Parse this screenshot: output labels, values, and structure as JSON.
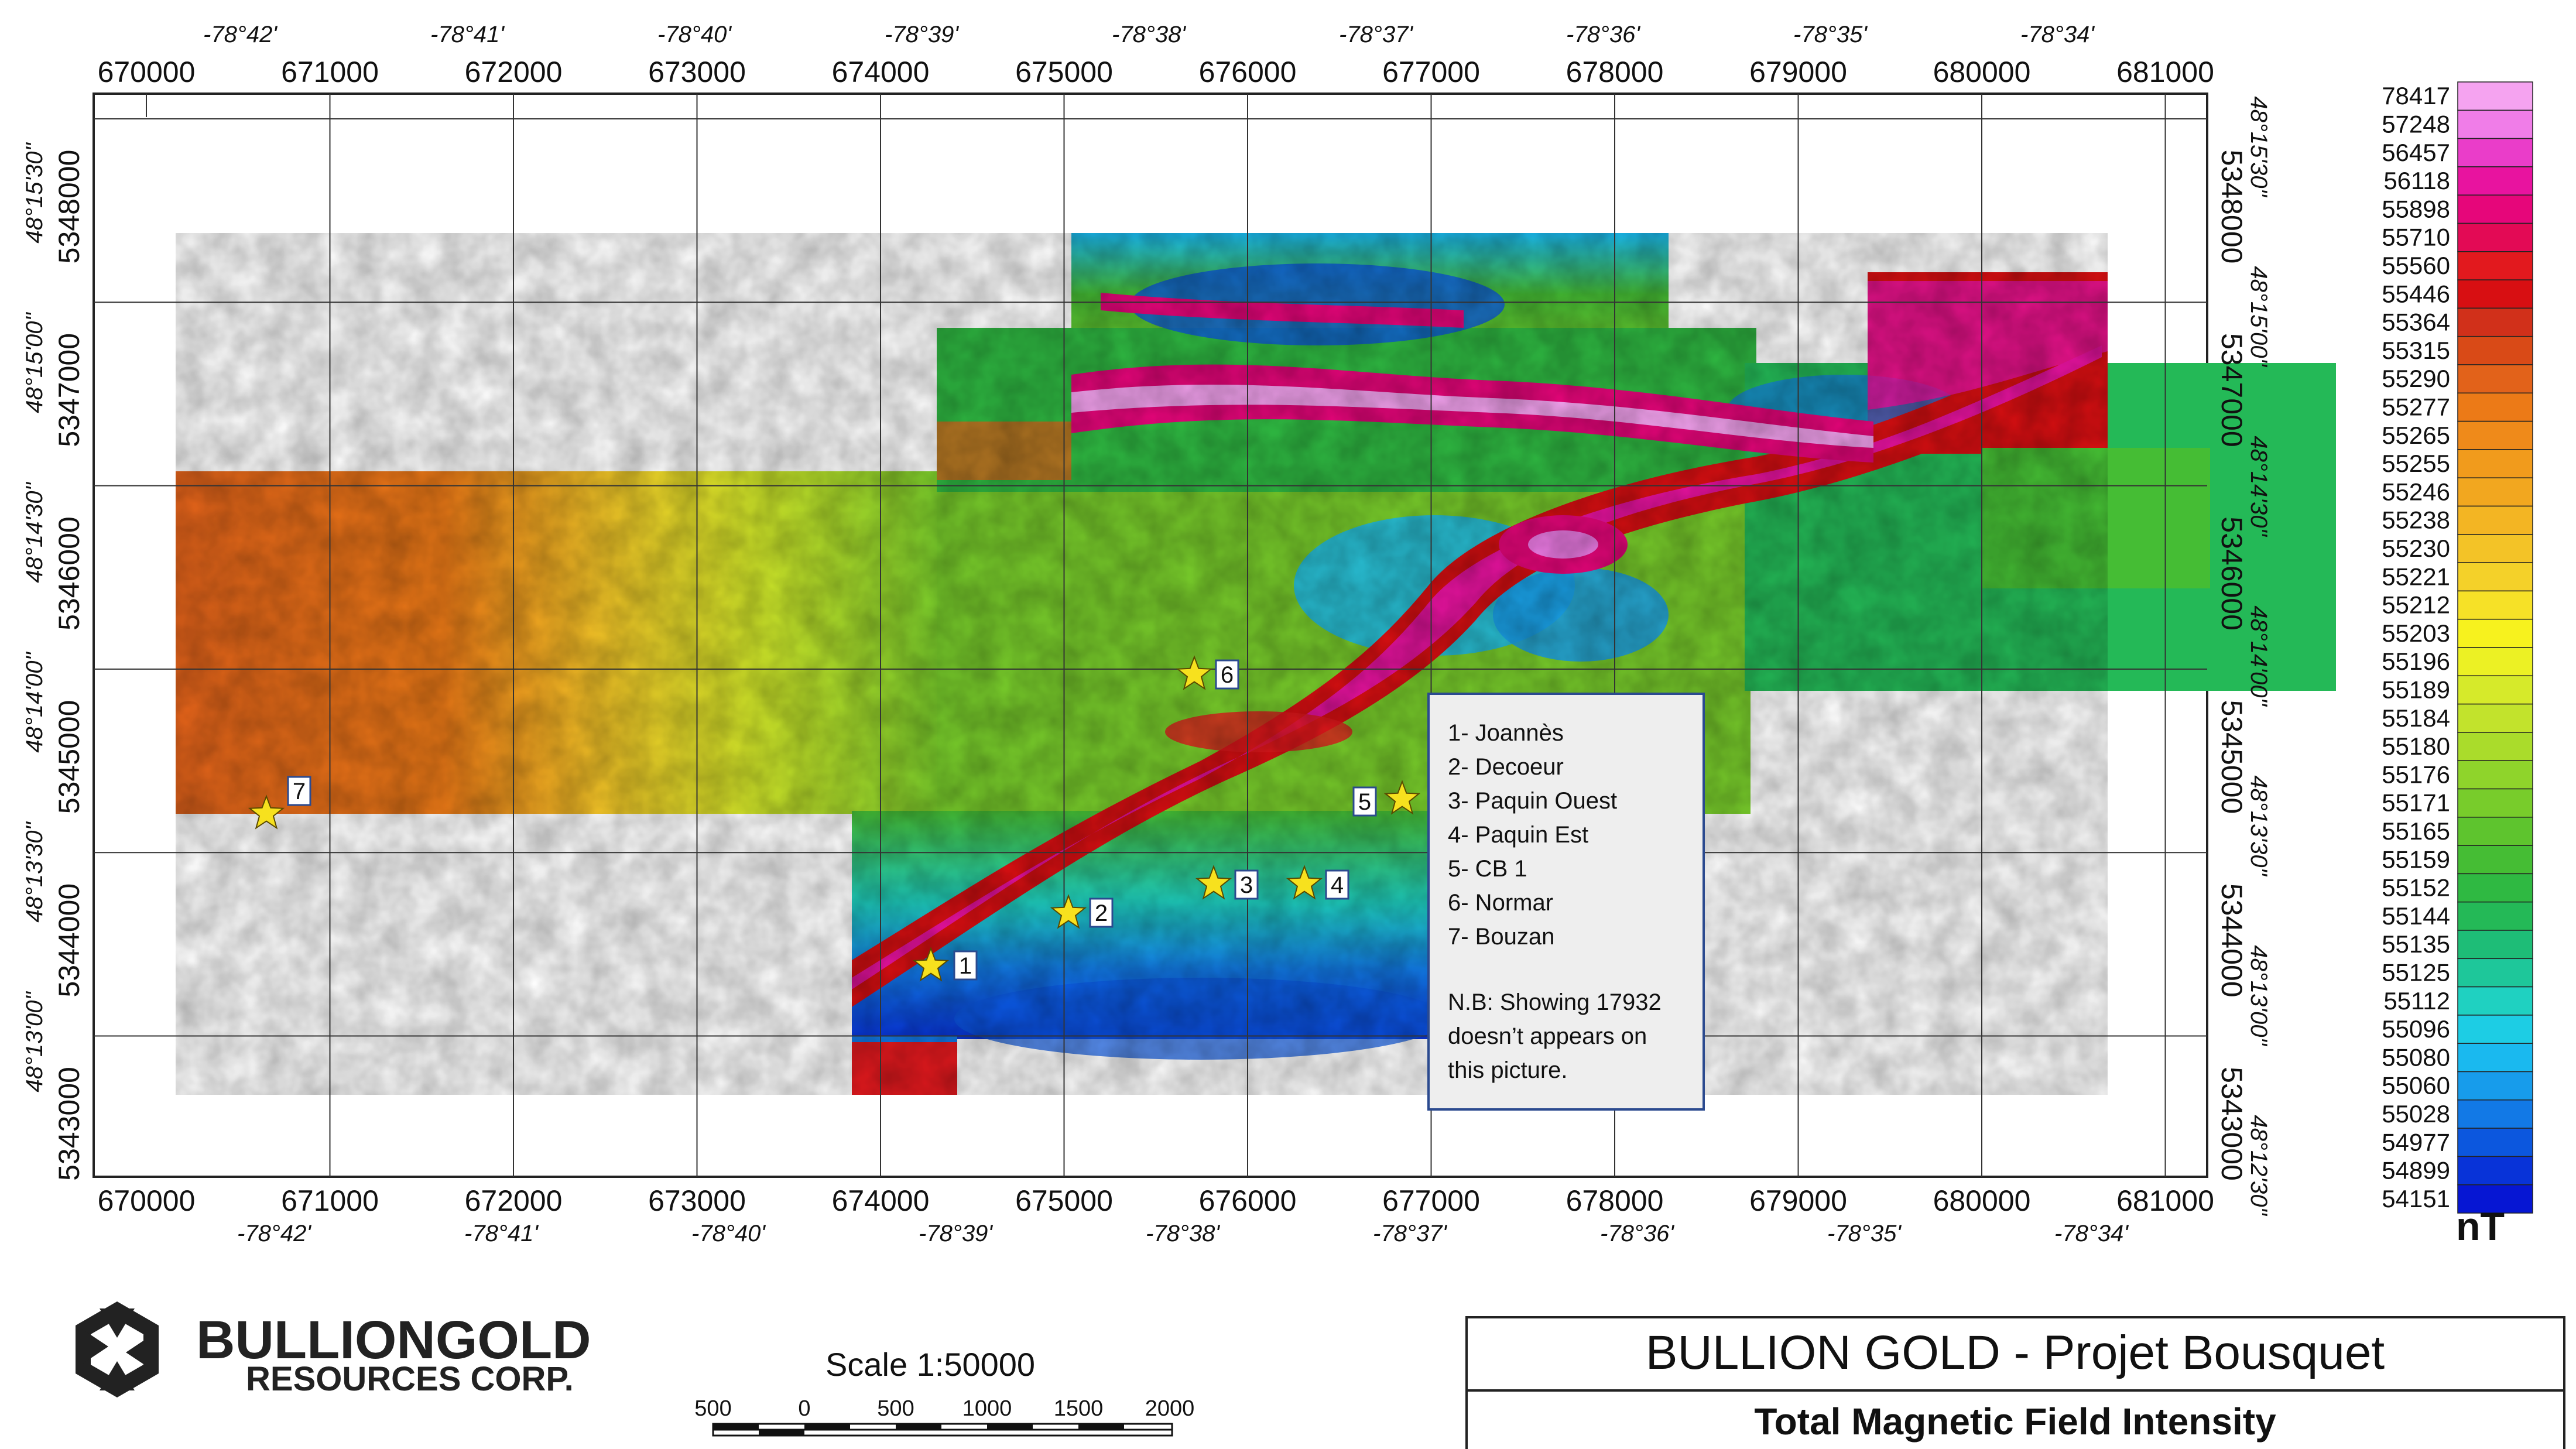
{
  "title_block": {
    "project": "BULLION GOLD - Projet Bousquet",
    "subtitle": "Total Magnetic Field Intensity"
  },
  "logo": {
    "line1": "BULLIONGOLD",
    "line2": "RESOURCES CORP."
  },
  "scale": {
    "label": "Scale 1:50000",
    "ticks": [
      "500",
      "0",
      "500",
      "1000",
      "1500",
      "2000"
    ]
  },
  "map": {
    "easting_labels": [
      "670000",
      "671000",
      "672000",
      "673000",
      "674000",
      "675000",
      "676000",
      "677000",
      "678000",
      "679000",
      "680000",
      "681000"
    ],
    "northing_labels": [
      "5348000",
      "5347000",
      "5346000",
      "5345000",
      "5344000",
      "5343000"
    ],
    "longitude_labels": [
      "-78°42'",
      "-78°41'",
      "-78°40'",
      "-78°39'",
      "-78°38'",
      "-78°37'",
      "-78°36'",
      "-78°35'",
      "-78°34'"
    ],
    "latitude_labels": [
      "48°15'30\"",
      "48°15'00\"",
      "48°14'30\"",
      "48°14'00\"",
      "48°13'30\"",
      "48°13'00\"",
      "48°12'30\""
    ]
  },
  "showings": [
    {
      "num": "1",
      "name": "Joannès"
    },
    {
      "num": "2",
      "name": "Decoeur"
    },
    {
      "num": "3",
      "name": "Paquin Ouest"
    },
    {
      "num": "4",
      "name": "Paquin Est"
    },
    {
      "num": "5",
      "name": "CB 1"
    },
    {
      "num": "6",
      "name": "Normar"
    },
    {
      "num": "7",
      "name": "Bouzan"
    }
  ],
  "legend": {
    "lines": [
      "1- Joannès",
      "2- Decoeur",
      "3- Paquin Ouest",
      "4- Paquin Est",
      "5- CB 1",
      "6- Normar",
      "7- Bouzan"
    ],
    "note_lines": [
      "N.B: Showing 17932",
      "doesn’t appears  on",
      "this picture."
    ]
  },
  "colorbar": {
    "unit": "nT",
    "values": [
      "78417",
      "57248",
      "56457",
      "56118",
      "55898",
      "55710",
      "55560",
      "55446",
      "55364",
      "55315",
      "55290",
      "55277",
      "55265",
      "55255",
      "55246",
      "55238",
      "55230",
      "55221",
      "55212",
      "55203",
      "55196",
      "55189",
      "55184",
      "55180",
      "55176",
      "55171",
      "55165",
      "55159",
      "55152",
      "55144",
      "55135",
      "55125",
      "55112",
      "55096",
      "55080",
      "55060",
      "55028",
      "54977",
      "54899",
      "54151"
    ],
    "colors": [
      "#f5a3f0",
      "#f07de8",
      "#ea3dc9",
      "#e8139f",
      "#e6067a",
      "#e30a55",
      "#e2191e",
      "#d80f12",
      "#d1301a",
      "#d94a17",
      "#e2621a",
      "#ec7a17",
      "#ef8a1a",
      "#f19b1c",
      "#f2a71f",
      "#f3b523",
      "#f3c327",
      "#f4d129",
      "#f6e127",
      "#f7f21e",
      "#ecf124",
      "#d6ea2a",
      "#c2e32c",
      "#aadc2b",
      "#8fd42b",
      "#78cc2b",
      "#5ec42e",
      "#45bd34",
      "#2fb942",
      "#24b957",
      "#1ebd77",
      "#1ec79a",
      "#1fd1c1",
      "#1dcde4",
      "#1ab9ef",
      "#179ceb",
      "#1279e6",
      "#0c57de",
      "#0833d8",
      "#0616d3"
    ]
  }
}
